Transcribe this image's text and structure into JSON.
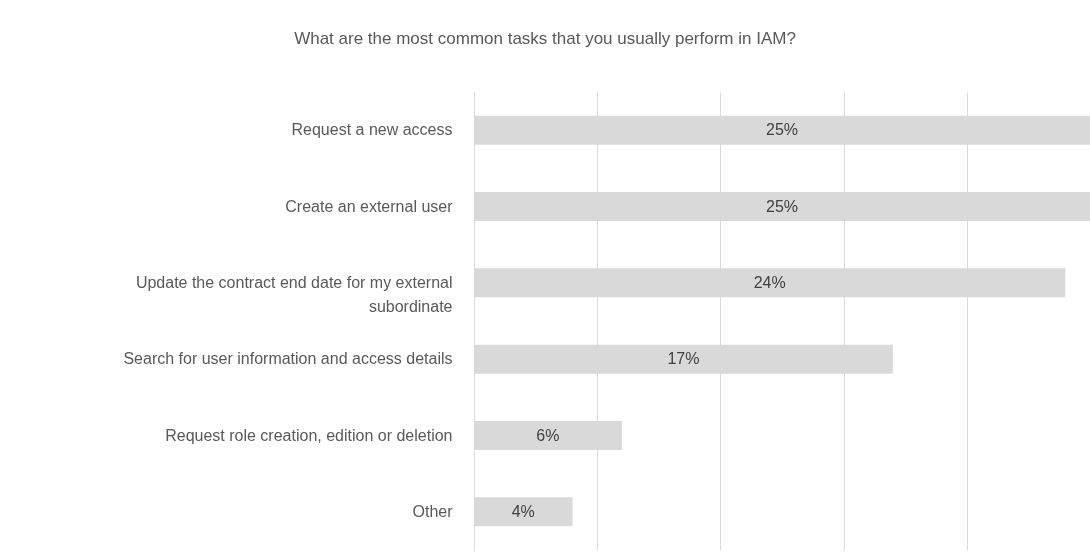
{
  "chart_data": {
    "type": "bar",
    "orientation": "horizontal",
    "title": "What are the most common tasks that you usually perform in IAM?",
    "categories": [
      "Request a new access",
      "Create an external user",
      "Update the contract end date for my external subordinate",
      "Search for user information and access details",
      "Request role creation, edition or deletion",
      "Other"
    ],
    "values": [
      25,
      25,
      24,
      17,
      6,
      4
    ],
    "value_labels": [
      "25%",
      "25%",
      "24%",
      "17%",
      "6%",
      "4%"
    ],
    "color": "#d9d9d9",
    "xlim": [
      0,
      25
    ],
    "xticks": [
      {
        "value": 0,
        "label": null
      },
      {
        "value": 5,
        "label": null
      },
      {
        "value": 10,
        "label": null
      },
      {
        "value": 15,
        "label": null
      },
      {
        "value": 20,
        "label": null
      },
      {
        "value": 25,
        "label": null
      }
    ],
    "grid": "x",
    "tick_labels": "y"
  }
}
